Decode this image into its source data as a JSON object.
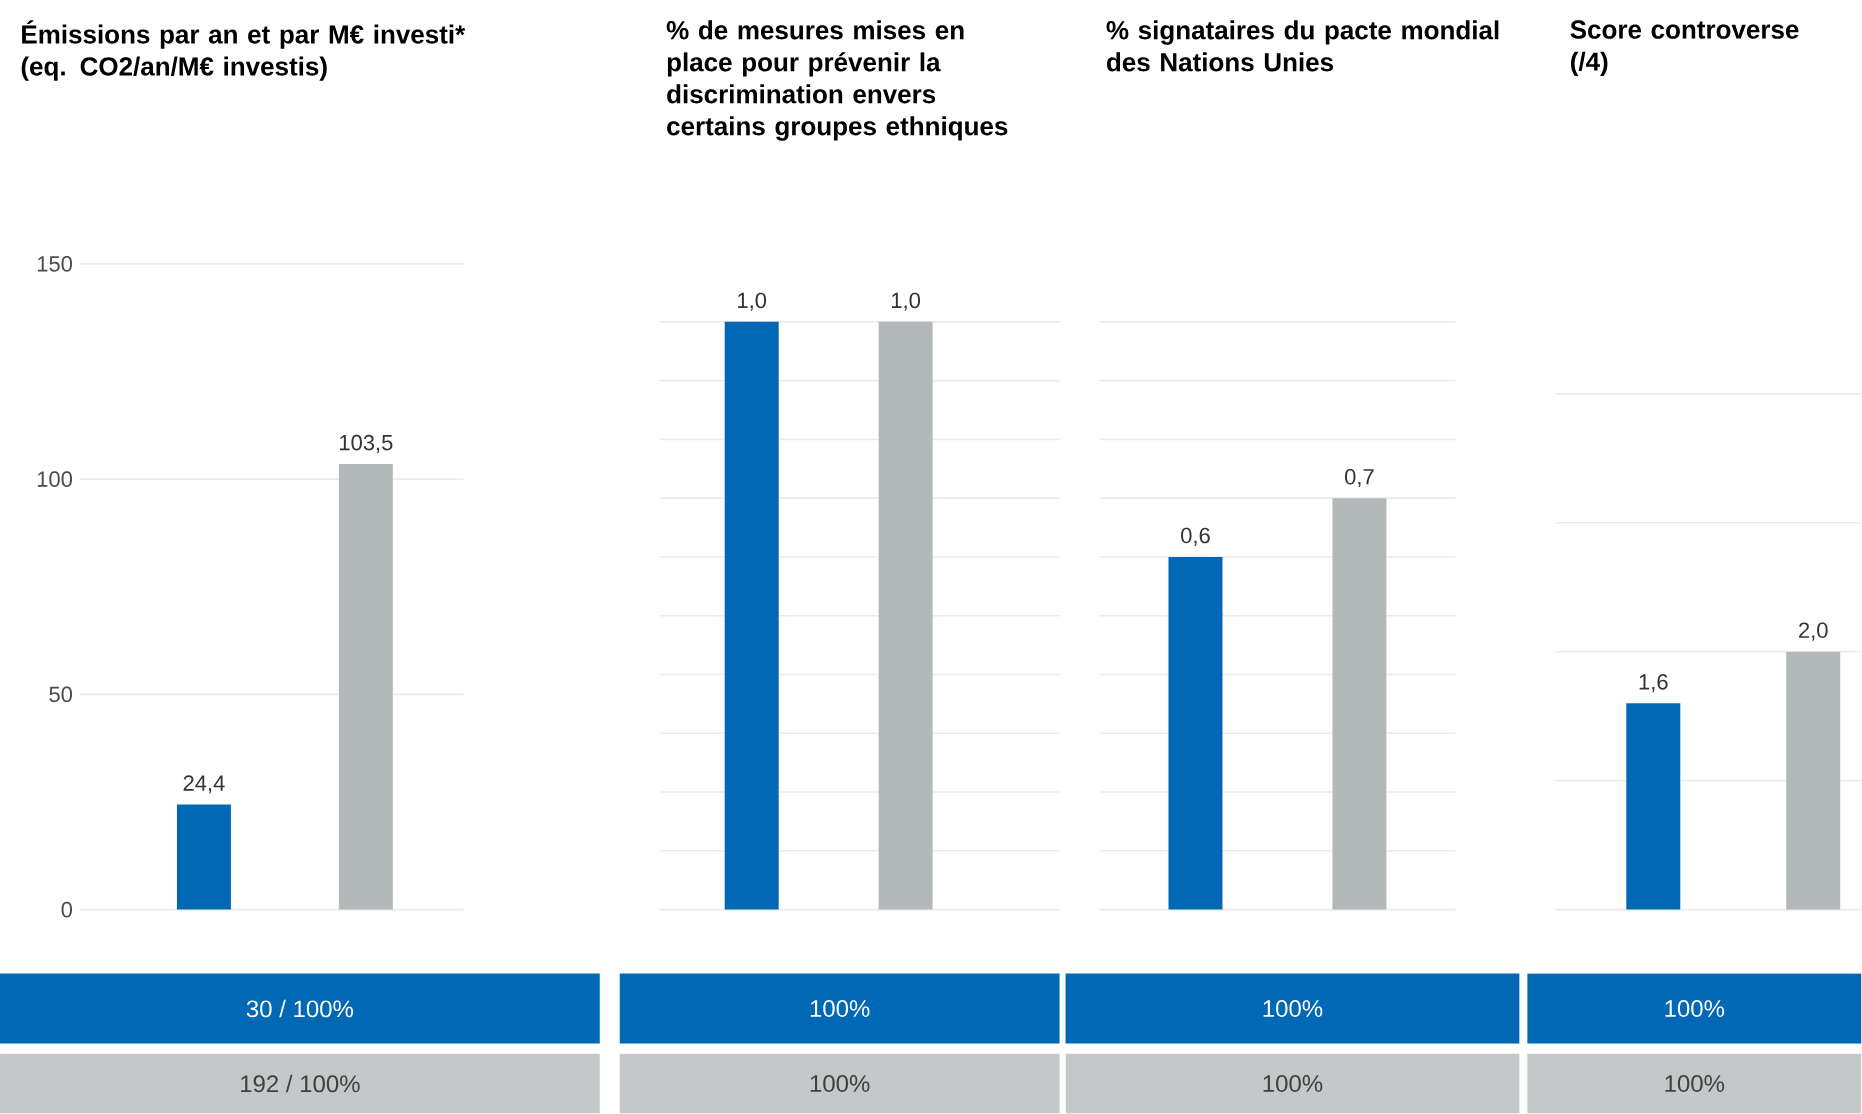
{
  "chart_data": [
    {
      "type": "bar",
      "title": "Émissions par an et par M€ investi*",
      "subtitle": "(eq. CO2/an/M€ investis)",
      "categories": [
        null,
        null
      ],
      "values": [
        24.4,
        103.5
      ],
      "colors": [
        "#0068b4",
        "#b3b8b8"
      ],
      "value_labels": [
        "24,4",
        "103,5"
      ],
      "ylim": [
        0,
        150
      ],
      "yticks": [
        0,
        50,
        100,
        150
      ],
      "grid": "y",
      "tick_labels": "y",
      "annotations": [
        "30 / 100%",
        "192 / 100%"
      ]
    },
    {
      "type": "bar",
      "title": "% de mesures mises en place pour prévenir la discrimination envers certains groupes ethniques",
      "categories": [
        null,
        null
      ],
      "values": [
        1.0,
        1.0
      ],
      "colors": [
        "#0068b4",
        "#b3b8b8"
      ],
      "value_labels": [
        "1,0",
        "1,0"
      ],
      "ylim": [
        0,
        1
      ],
      "yticks": [
        {
          "value": 0,
          "label": null
        },
        {
          "value": 0.1,
          "label": null
        },
        {
          "value": 0.2,
          "label": null
        },
        {
          "value": 0.3,
          "label": null
        },
        {
          "value": 0.4,
          "label": null
        },
        {
          "value": 0.5,
          "label": null
        },
        {
          "value": 0.6,
          "label": null
        },
        {
          "value": 0.7,
          "label": null
        },
        {
          "value": 0.8,
          "label": null
        },
        {
          "value": 0.9,
          "label": null
        },
        {
          "value": 1,
          "label": null
        }
      ],
      "grid": "y",
      "tick_labels": false,
      "annotations": [
        "100%",
        "100%"
      ]
    },
    {
      "type": "bar",
      "title": "% signataires du pacte mondial des Nations Unies",
      "categories": [
        null,
        null
      ],
      "values": [
        0.6,
        0.7
      ],
      "colors": [
        "#0068b4",
        "#b3b8b8"
      ],
      "value_labels": [
        "0,6",
        "0,7"
      ],
      "ylim": [
        0,
        1
      ],
      "yticks": [
        {
          "value": 0,
          "label": null
        },
        {
          "value": 0.1,
          "label": null
        },
        {
          "value": 0.2,
          "label": null
        },
        {
          "value": 0.3,
          "label": null
        },
        {
          "value": 0.4,
          "label": null
        },
        {
          "value": 0.5,
          "label": null
        },
        {
          "value": 0.6,
          "label": null
        },
        {
          "value": 0.7,
          "label": null
        },
        {
          "value": 0.8,
          "label": null
        },
        {
          "value": 0.9,
          "label": null
        },
        {
          "value": 1,
          "label": null
        }
      ],
      "grid": "y",
      "tick_labels": false,
      "annotations": [
        "100%",
        "100%"
      ]
    },
    {
      "type": "bar",
      "title": "Score controverse",
      "subtitle": "(/4)",
      "categories": [
        null,
        null
      ],
      "values": [
        1.6,
        2.0
      ],
      "colors": [
        "#0068b4",
        "#b3b8b8"
      ],
      "value_labels": [
        "1,6",
        "2,0"
      ],
      "ylim": [
        0,
        4
      ],
      "yticks": [
        {
          "value": 0,
          "label": null
        },
        {
          "value": 1,
          "label": null
        },
        {
          "value": 2,
          "label": null
        },
        {
          "value": 3,
          "label": null
        },
        {
          "value": 4,
          "label": null
        }
      ],
      "grid": "y",
      "tick_labels": false,
      "annotations": [
        "100%",
        "100%"
      ]
    }
  ]
}
